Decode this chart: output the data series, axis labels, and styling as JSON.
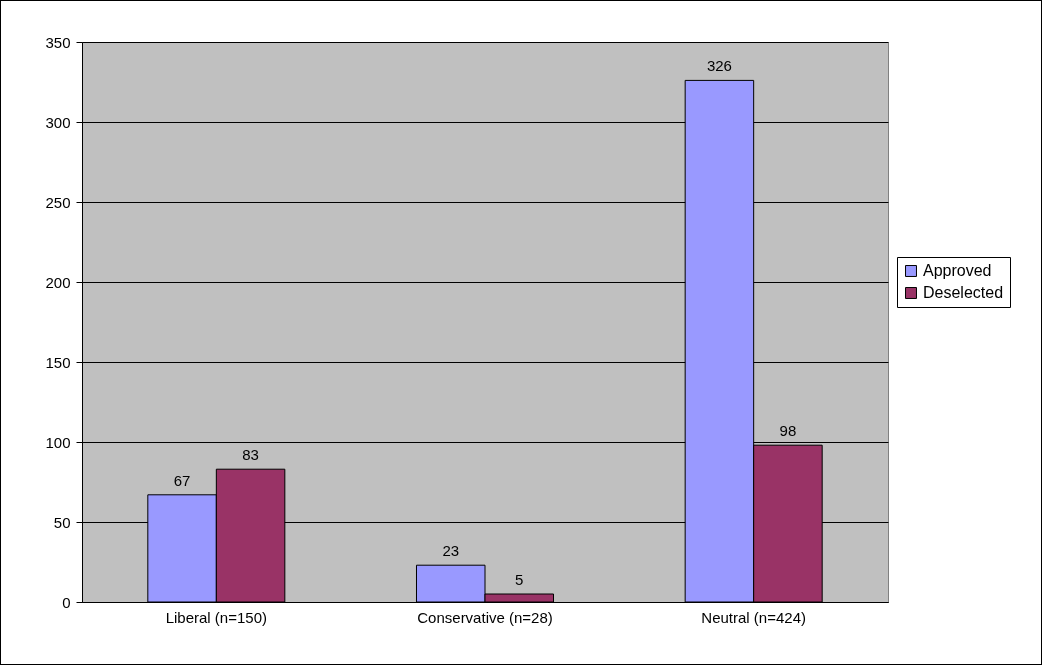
{
  "chart_data": {
    "type": "bar",
    "categories": [
      "Liberal (n=150)",
      "Conservative (n=28)",
      "Neutral (n=424)"
    ],
    "series": [
      {
        "name": "Approved",
        "color": "#9999ff",
        "values": [
          67,
          23,
          326
        ]
      },
      {
        "name": "Deselected",
        "color": "#993366",
        "values": [
          83,
          5,
          98
        ]
      }
    ],
    "ylim": [
      0,
      350
    ],
    "yticks": [
      0,
      50,
      100,
      150,
      200,
      250,
      300,
      350
    ],
    "grid": "y",
    "legend": "right",
    "data_labels": true
  }
}
